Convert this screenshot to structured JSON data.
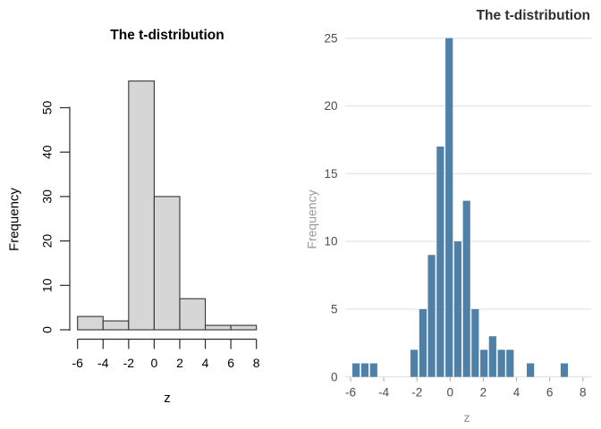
{
  "figure": {
    "background": "#ffffff",
    "description": "Two histograms of the same 100 t-distributed samples, base-R style (left) and minimal ggplot style (right)"
  },
  "chart_data": [
    {
      "id": "left-panel",
      "type": "bar",
      "style": "r-base-histogram",
      "title": "The t-distribution",
      "xlabel": "z",
      "ylabel": "Frequency",
      "bin_width": 2,
      "bin_edges": [
        -6,
        -4,
        -2,
        0,
        2,
        4,
        6,
        8
      ],
      "categories": [
        "[-6,-4)",
        "[-4,-2)",
        "[-2,0)",
        "[0,2)",
        "[2,4)",
        "[4,6)",
        "[6,8)"
      ],
      "values": [
        3,
        2,
        56,
        30,
        7,
        1,
        1
      ],
      "x_ticks": [
        -6,
        -4,
        -2,
        0,
        2,
        4,
        6,
        8
      ],
      "y_ticks": [
        0,
        10,
        20,
        30,
        40,
        50
      ],
      "xlim": [
        -6,
        8
      ],
      "ylim": [
        0,
        56
      ],
      "grid": false,
      "legend": "none",
      "total_n": 100,
      "bar_fill": "#d6d6d6",
      "bar_border": "#333333",
      "axis_color": "#2b2b2b",
      "text_color": "#000000"
    },
    {
      "id": "right-panel",
      "type": "bar",
      "style": "ggplot-minimal-histogram",
      "title": "The t-distribution",
      "xlabel": "z",
      "ylabel": "Frequency",
      "bin_width": 0.52,
      "bars": [
        {
          "x": -5.67,
          "count": 1
        },
        {
          "x": -5.14,
          "count": 1
        },
        {
          "x": -4.61,
          "count": 1
        },
        {
          "x": -2.17,
          "count": 2
        },
        {
          "x": -1.64,
          "count": 5
        },
        {
          "x": -1.12,
          "count": 9
        },
        {
          "x": -0.59,
          "count": 17
        },
        {
          "x": -0.06,
          "count": 25
        },
        {
          "x": 0.46,
          "count": 10
        },
        {
          "x": 0.99,
          "count": 13
        },
        {
          "x": 1.51,
          "count": 5
        },
        {
          "x": 2.04,
          "count": 2
        },
        {
          "x": 2.56,
          "count": 3
        },
        {
          "x": 3.09,
          "count": 2
        },
        {
          "x": 3.61,
          "count": 2
        },
        {
          "x": 4.84,
          "count": 1
        },
        {
          "x": 6.88,
          "count": 1
        }
      ],
      "x_ticks": [
        -6,
        -4,
        -2,
        0,
        2,
        4,
        6,
        8
      ],
      "y_ticks": [
        0,
        5,
        10,
        15,
        20,
        25
      ],
      "xlim": [
        -6,
        8
      ],
      "ylim": [
        0,
        25
      ],
      "grid": true,
      "gridline_color": "#e7e7e7",
      "legend": "none",
      "total_n": 100,
      "bar_fill": "#4f80a7",
      "tick_mark_color": "#b3b3b3",
      "tick_text_color": "#4d4d4d",
      "label_color": "#9a9a9a",
      "title_color": "#2f2f2f"
    }
  ]
}
